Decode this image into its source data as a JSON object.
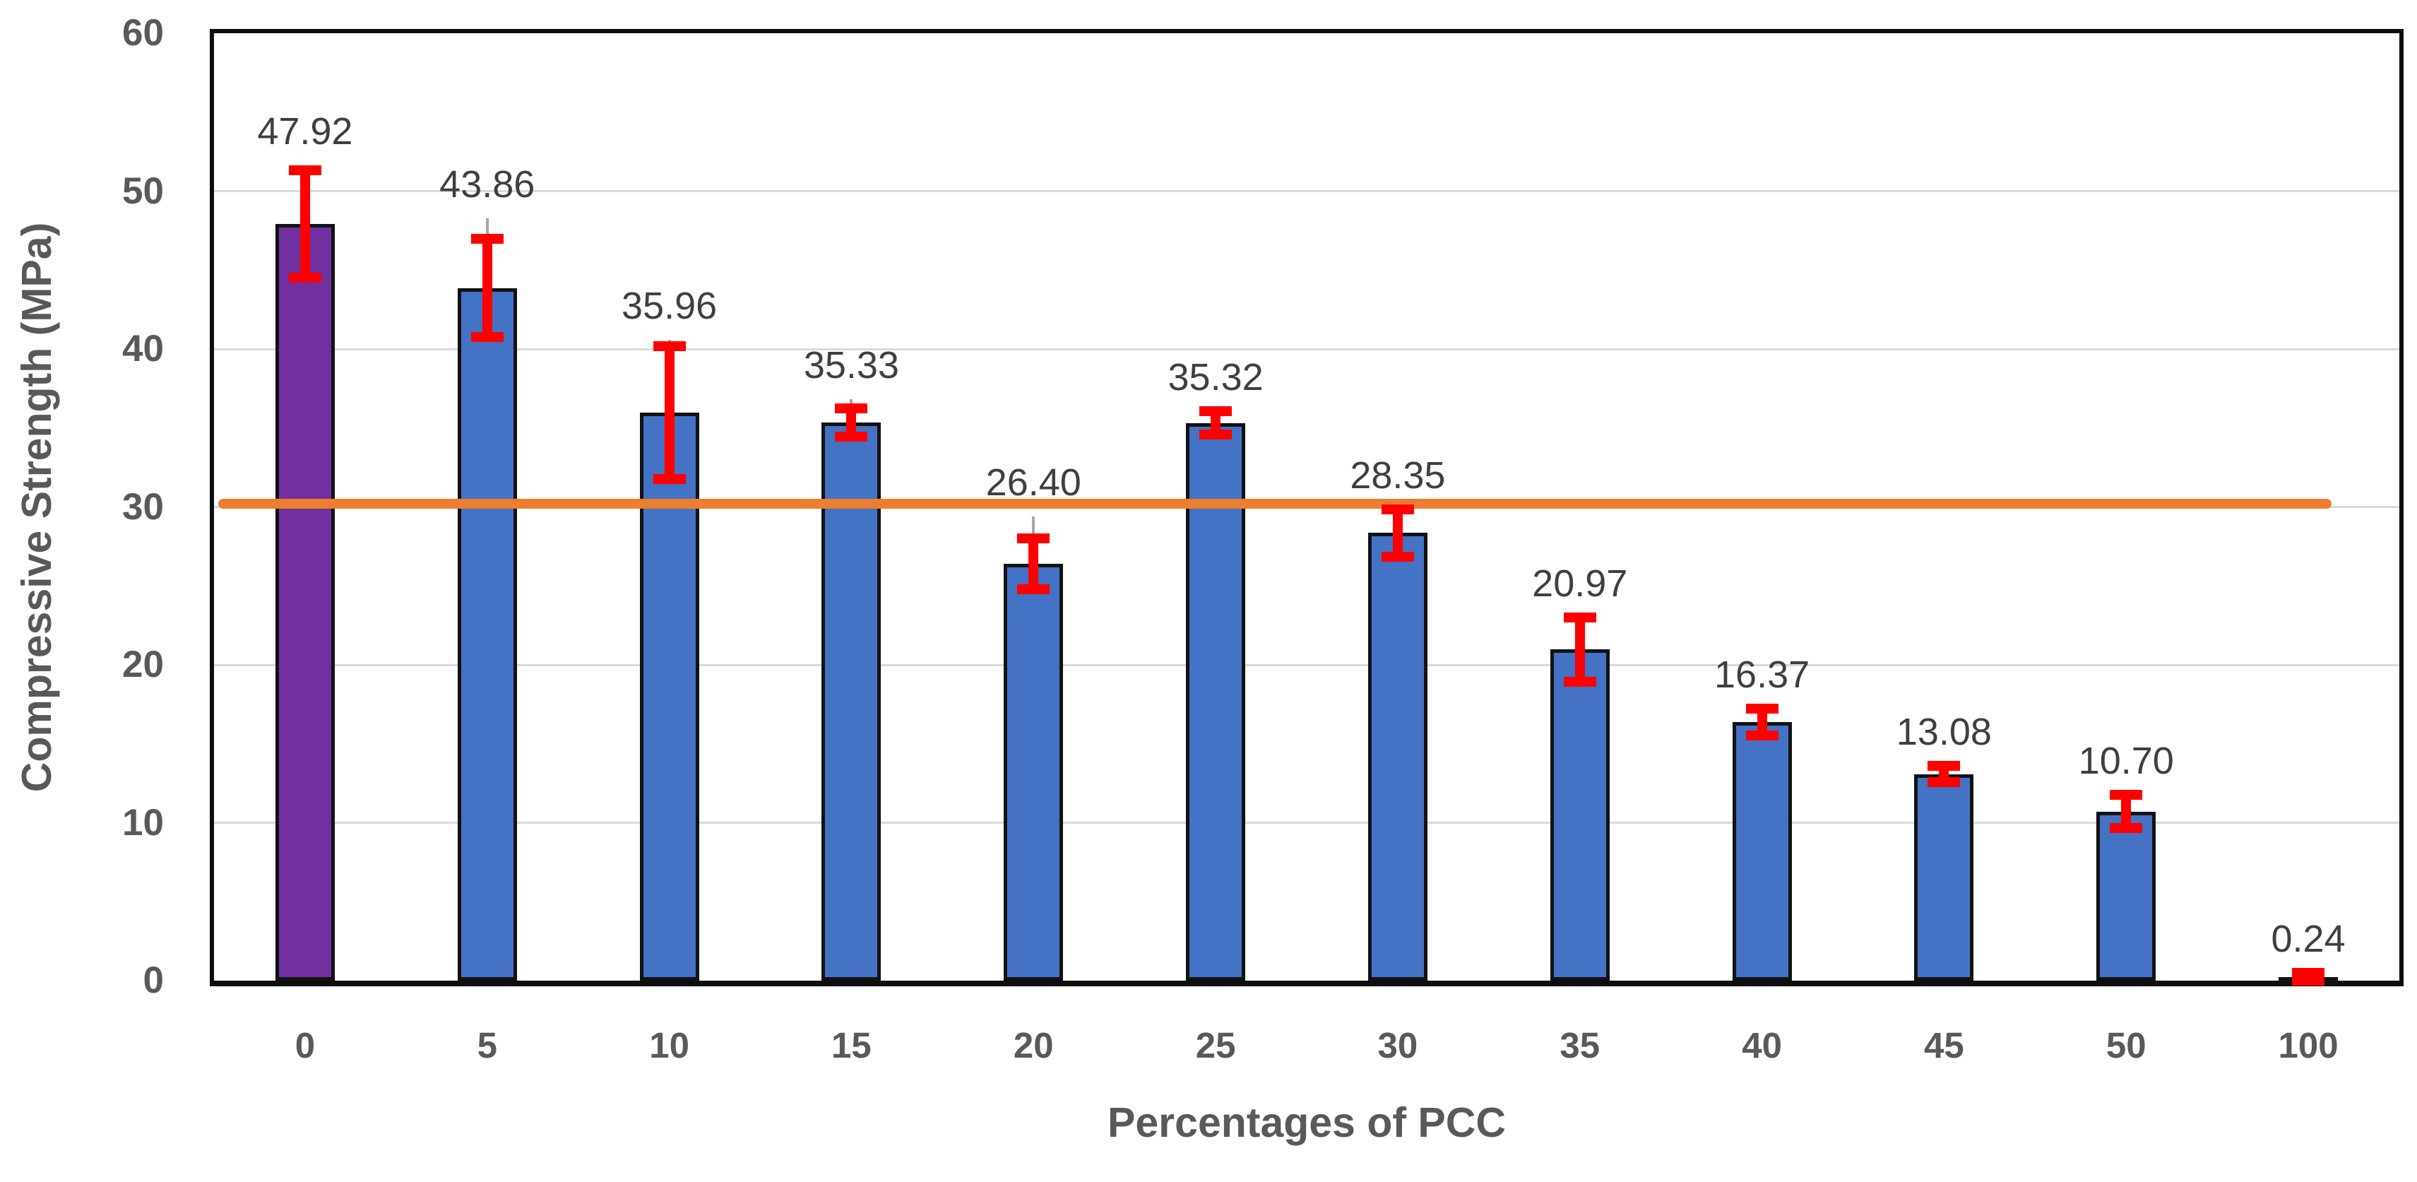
{
  "chart_data": {
    "type": "bar",
    "title": "",
    "xlabel": "Percentages of PCC",
    "ylabel": "Compressive Strength (MPa)",
    "categories": [
      "0",
      "5",
      "10",
      "15",
      "20",
      "25",
      "30",
      "35",
      "40",
      "45",
      "50",
      "100"
    ],
    "values": [
      47.92,
      43.86,
      35.96,
      35.33,
      26.4,
      35.32,
      28.35,
      20.97,
      16.37,
      13.08,
      10.7,
      0.24
    ],
    "value_labels": [
      "47.92",
      "43.86",
      "35.96",
      "35.33",
      "26.40",
      "35.32",
      "28.35",
      "20.97",
      "16.37",
      "13.08",
      "10.70",
      "0.24"
    ],
    "errors": [
      3.4,
      3.1,
      4.2,
      0.9,
      1.6,
      0.75,
      1.5,
      2.05,
      0.85,
      0.5,
      1.05,
      0.25
    ],
    "error_inner_overhang": [
      0.3,
      1.3,
      0.4,
      0.6,
      1.4,
      0,
      0,
      0,
      0,
      0,
      0,
      0
    ],
    "ylim": [
      0,
      60
    ],
    "yticks": [
      0,
      10,
      20,
      30,
      40,
      50,
      60
    ],
    "grid": true,
    "legend": false,
    "ref_line": {
      "value": 30.2,
      "color": "#ED7D31",
      "end_fraction": 0.967
    },
    "colors": {
      "bar_default": "#4472C4",
      "bar_first": "#7030A0",
      "bar_outline": "#121212",
      "error_bar": "#FF0000",
      "error_inner": "#A6A6A6",
      "gridline": "#D9D9D9",
      "axis_text": "#595959",
      "value_text": "#3F3F3F",
      "plot_border": "#0D0D0D"
    }
  }
}
